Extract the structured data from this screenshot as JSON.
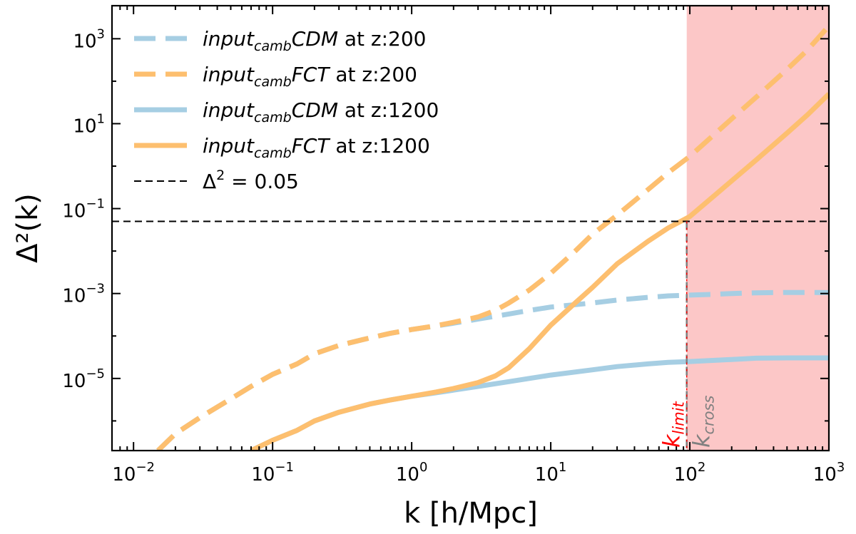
{
  "chart_data": {
    "type": "line",
    "xscale": "log",
    "yscale": "log",
    "xlabel": "k [h/Mpc]",
    "ylabel": "Δ²(k)",
    "xlim": [
      0.007,
      1000
    ],
    "ylim": [
      2e-07,
      6000
    ],
    "x_ticks": [
      {
        "value": 0.01,
        "base": "10",
        "exp": "−2"
      },
      {
        "value": 0.1,
        "base": "10",
        "exp": "−1"
      },
      {
        "value": 1,
        "base": "10",
        "exp": "0"
      },
      {
        "value": 10,
        "base": "10",
        "exp": "1"
      },
      {
        "value": 100,
        "base": "10",
        "exp": "2"
      },
      {
        "value": 1000,
        "base": "10",
        "exp": "3"
      }
    ],
    "y_ticks": [
      {
        "value": 1e-05,
        "base": "10",
        "exp": "−5"
      },
      {
        "value": 0.001,
        "base": "10",
        "exp": "−3"
      },
      {
        "value": 0.1,
        "base": "10",
        "exp": "−1"
      },
      {
        "value": 10,
        "base": "10",
        "exp": "1"
      },
      {
        "value": 1000,
        "base": "10",
        "exp": "3"
      }
    ],
    "series": [
      {
        "name_main": "input",
        "name_sub": "camb",
        "name_tail": "CDM",
        "name_suffix": " at z:200",
        "style": "dashed",
        "color": "#a6cee3",
        "x": [
          0.015,
          0.02,
          0.03,
          0.05,
          0.07,
          0.1,
          0.15,
          0.2,
          0.3,
          0.5,
          0.7,
          1,
          1.5,
          2,
          3,
          5,
          7,
          10,
          20,
          30,
          50,
          70,
          100,
          150,
          200,
          300,
          500,
          700,
          1000
        ],
        "y": [
          2e-07,
          5e-07,
          1.2e-06,
          3.3e-06,
          6.5e-06,
          1.25e-05,
          2.2e-05,
          3.8e-05,
          6e-05,
          9e-05,
          0.000115,
          0.000142,
          0.000172,
          0.0002,
          0.00025,
          0.00033,
          0.0004,
          0.00048,
          0.0006,
          0.0007,
          0.00081,
          0.00088,
          0.00092,
          0.00096,
          0.001,
          0.00104,
          0.00106,
          0.00106,
          0.00105
        ]
      },
      {
        "name_main": "input",
        "name_sub": "camb",
        "name_tail": "FCT",
        "name_suffix": " at z:200",
        "style": "dashed",
        "color": "#fdbf6f",
        "x": [
          0.015,
          0.02,
          0.03,
          0.05,
          0.07,
          0.1,
          0.15,
          0.2,
          0.3,
          0.5,
          0.7,
          1,
          1.5,
          2,
          3,
          4,
          5,
          7,
          10,
          15,
          20,
          30,
          50,
          70,
          100,
          200,
          300,
          500,
          700,
          1000
        ],
        "y": [
          2e-07,
          5e-07,
          1.2e-06,
          3.3e-06,
          6.5e-06,
          1.25e-05,
          2.2e-05,
          3.8e-05,
          6e-05,
          9e-05,
          0.000115,
          0.000142,
          0.000175,
          0.00021,
          0.00028,
          0.0004,
          0.0006,
          0.0012,
          0.003,
          0.01,
          0.025,
          0.07,
          0.28,
          0.7,
          1.7,
          13,
          42,
          190,
          540,
          2000
        ]
      },
      {
        "name_main": "input",
        "name_sub": "camb",
        "name_tail": "CDM",
        "name_suffix": " at z:1200",
        "style": "solid",
        "color": "#a6cee3",
        "x": [
          0.07,
          0.1,
          0.15,
          0.2,
          0.3,
          0.5,
          0.7,
          1,
          1.5,
          2,
          3,
          5,
          7,
          10,
          20,
          30,
          50,
          70,
          100,
          200,
          300,
          500,
          1000
        ],
        "y": [
          2e-07,
          3.5e-07,
          6e-07,
          1e-06,
          1.6e-06,
          2.5e-06,
          3.1e-06,
          3.8e-06,
          4.6e-06,
          5.3e-06,
          6.5e-06,
          8.4e-06,
          1e-05,
          1.2e-05,
          1.6e-05,
          1.9e-05,
          2.2e-05,
          2.4e-05,
          2.5e-05,
          2.8e-05,
          3e-05,
          3.05e-05,
          3.05e-05
        ]
      },
      {
        "name_main": "input",
        "name_sub": "camb",
        "name_tail": "FCT",
        "name_suffix": " at z:1200",
        "style": "solid",
        "color": "#fdbf6f",
        "x": [
          0.07,
          0.1,
          0.15,
          0.2,
          0.3,
          0.5,
          0.7,
          1,
          1.5,
          2,
          3,
          4,
          5,
          7,
          10,
          15,
          20,
          30,
          50,
          70,
          100,
          200,
          300,
          500,
          700,
          1000
        ],
        "y": [
          2e-07,
          3.5e-07,
          6e-07,
          1e-06,
          1.6e-06,
          2.5e-06,
          3.1e-06,
          3.8e-06,
          4.8e-06,
          5.8e-06,
          8e-06,
          1.15e-05,
          1.8e-05,
          5e-05,
          0.00018,
          0.0006,
          0.0014,
          0.005,
          0.017,
          0.035,
          0.065,
          0.45,
          1.4,
          6.0,
          16,
          50
        ]
      }
    ],
    "hline": {
      "y": 0.05,
      "style": "dashed",
      "color": "#000000",
      "label_prefix": "Δ",
      "label_sup": "2",
      "label_suffix": " = 0.05"
    },
    "shaded_region": {
      "x_start": 95,
      "x_end": 1000,
      "color": "#fcc7c7"
    },
    "vline_limit": {
      "x": 95,
      "label": "k",
      "sub": "limit",
      "color": "#ff0000"
    },
    "vline_cross": {
      "x": 95,
      "label": "k",
      "sub": "cross",
      "color": "#808080"
    },
    "legend_position": "upper-left"
  }
}
